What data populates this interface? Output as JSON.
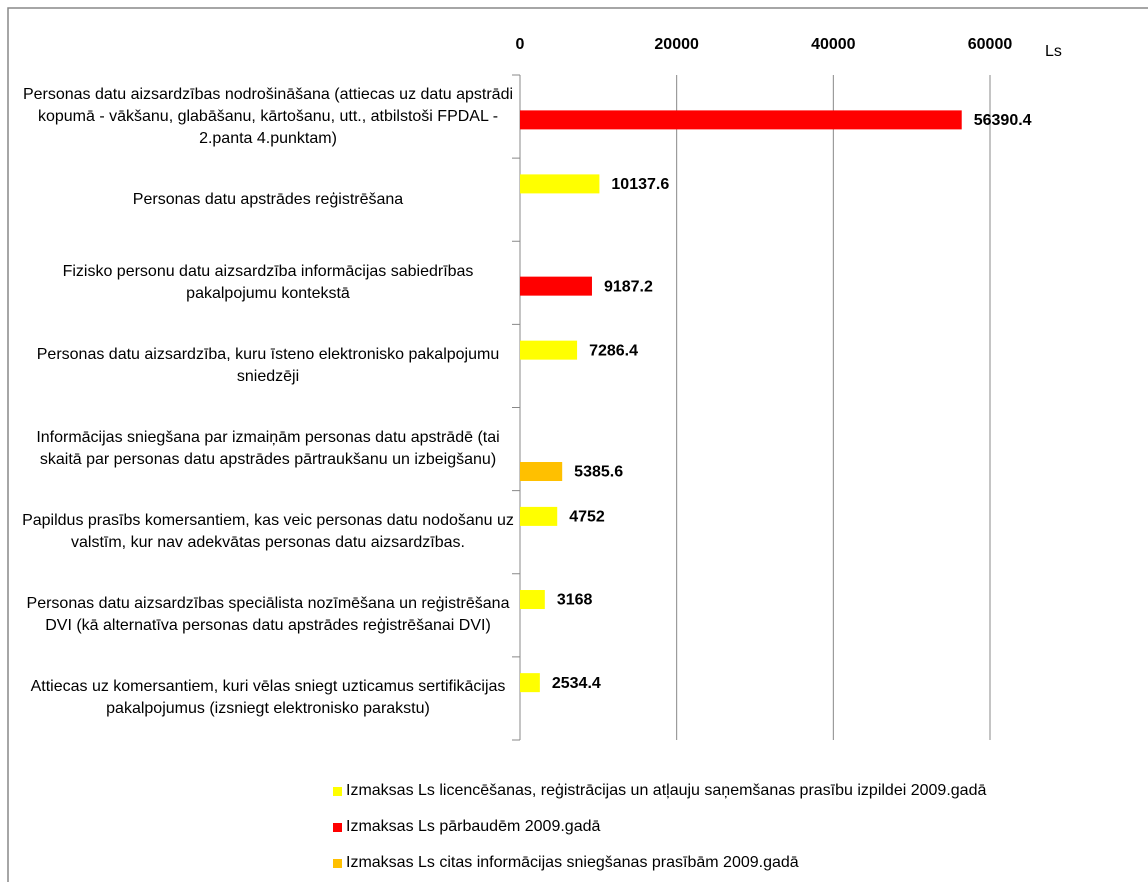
{
  "chart_data": {
    "type": "hbar",
    "x_label": "Ls",
    "categories": [
      "Personas datu aizsardzības nodrošināšana (attiecas uz datu apstrādi kopumā - vākšanu, glabāšanu, kārtošanu, utt., atbilstoši FPDAL - 2.panta 4.punktam)",
      "Personas datu apstrādes reģistrēšana",
      "Fizisko personu datu aizsardzība informācijas sabiedrības pakalpojumu kontekstā",
      "Personas datu aizsardzība, kuru īsteno elektronisko pakalpojumu sniedzēji",
      "Informācijas sniegšana par izmaiņām personas datu apstrādē (tai skaitā par personas datu apstrādes pārtraukšanu un izbeigšanu)",
      "Papildus prasībs komersantiem, kas veic personas datu nodošanu uz valstīm, kur nav adekvātas personas datu aizsardzības.",
      "Personas datu aizsardzības speciālista nozīmēšana un reģistrēšana DVI (kā alternatīva personas datu apstrādes reģistrēšanai DVI)",
      "Attiecas uz komersantiem, kuri vēlas sniegt uzticamus sertifikācijas pakalpojumus (izsniegt elektronisko parakstu)"
    ],
    "series": [
      {
        "name": "Izmaksas Ls licencēšanas, reģistrācijas un atļauju saņemšanas prasību izpildei 2009.gadā",
        "color": "#ffff00",
        "values": [
          null,
          10137.6,
          null,
          7286.4,
          null,
          4752,
          3168,
          2534.4
        ]
      },
      {
        "name": "Izmaksas Ls pārbaudēm 2009.gadā",
        "color": "#ff0000",
        "values": [
          56390.4,
          null,
          9187.2,
          null,
          null,
          null,
          null,
          null
        ]
      },
      {
        "name": "Izmaksas Ls citas informācijas sniegšanas prasībām 2009.gadā",
        "color": "#ffc000",
        "values": [
          null,
          null,
          null,
          null,
          5385.6,
          null,
          null,
          null
        ]
      }
    ],
    "xlim": [
      0,
      60000
    ],
    "xticks": [
      0,
      20000,
      40000,
      60000
    ],
    "grid": true,
    "legend": "bottom"
  }
}
